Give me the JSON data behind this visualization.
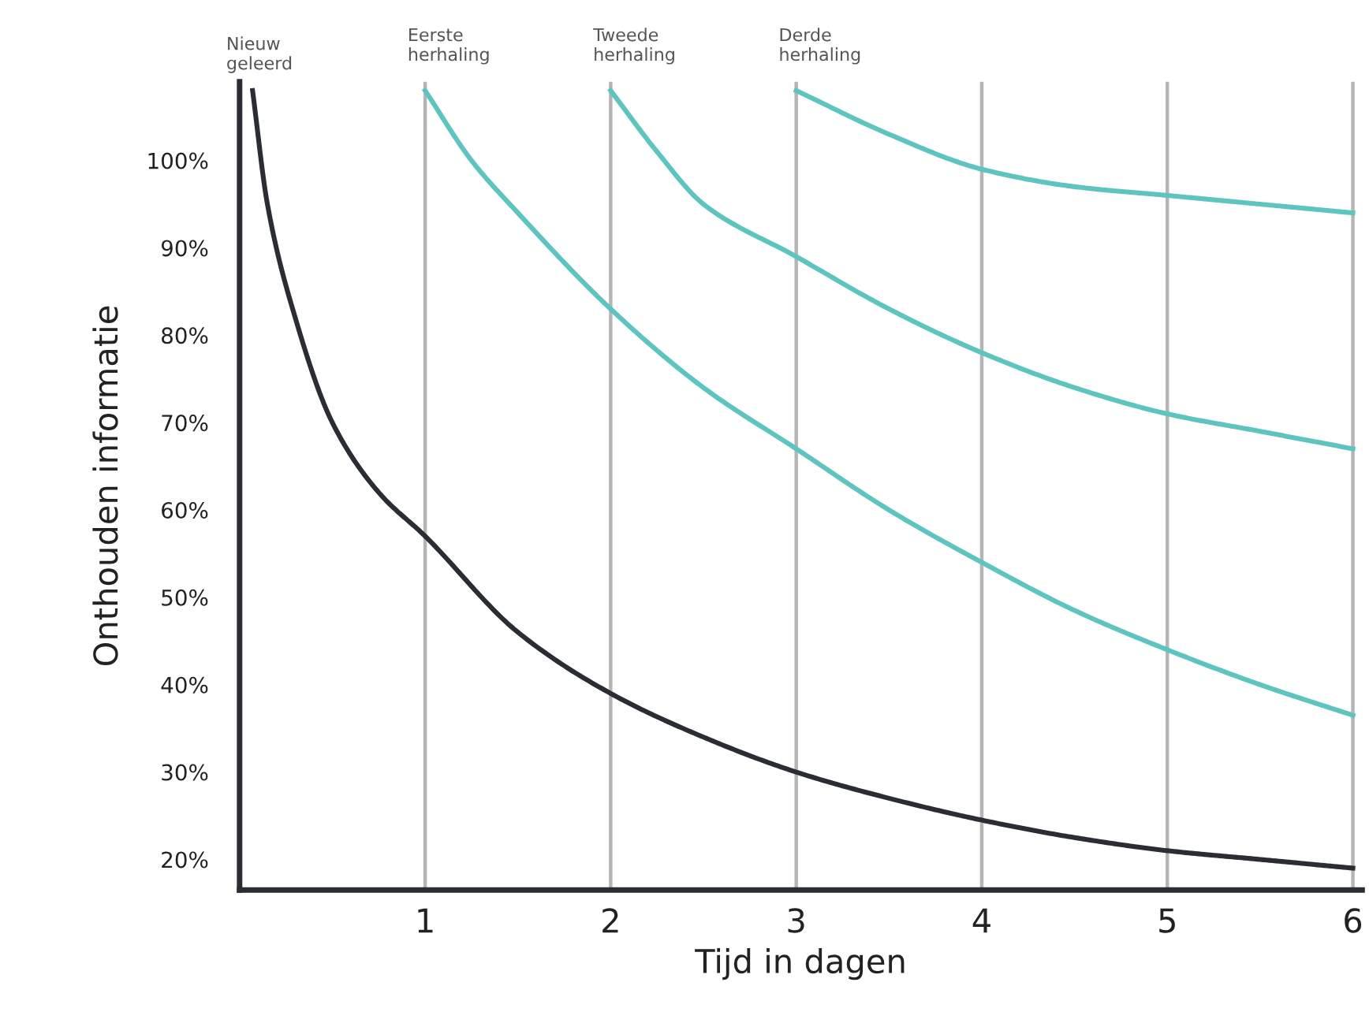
{
  "chart_data": {
    "type": "line",
    "xlabel": "Tijd in dagen",
    "ylabel": "Onthouden informatie",
    "xlim": [
      0,
      6.05
    ],
    "xticks": [
      1,
      2,
      3,
      4,
      5,
      6
    ],
    "ylim": [
      16.5,
      109
    ],
    "yticks": [
      {
        "value": 20,
        "label": "20%"
      },
      {
        "value": 30,
        "label": "30%"
      },
      {
        "value": 40,
        "label": "40%"
      },
      {
        "value": 50,
        "label": "50%"
      },
      {
        "value": 60,
        "label": "60%"
      },
      {
        "value": 70,
        "label": "70%"
      },
      {
        "value": 80,
        "label": "80%"
      },
      {
        "value": 90,
        "label": "90%"
      },
      {
        "value": 100,
        "label": "100%"
      }
    ],
    "annotations": [
      {
        "text": "Nieuw\ngeleerd",
        "x": 0.07,
        "y": 108
      }
    ],
    "grid": false,
    "legend": false,
    "marker": "none",
    "line_style": "solid",
    "series": [
      {
        "color": "#2b2d35",
        "x": [
          0.07,
          0.15,
          0.3,
          0.5,
          0.75,
          1,
          1.5,
          2,
          2.5,
          3,
          3.5,
          4,
          4.5,
          5,
          5.5,
          6
        ],
        "values": [
          108,
          95,
          82,
          70,
          62,
          57,
          46,
          39,
          34,
          30,
          27,
          24.5,
          22.5,
          21,
          20,
          19
        ]
      },
      {
        "color": "#5ec4c0",
        "x": [
          1,
          1.25,
          1.5,
          2,
          2.5,
          3,
          3.5,
          4,
          4.5,
          5,
          5.5,
          6
        ],
        "values": [
          108,
          100,
          94,
          83,
          74,
          67,
          60,
          54,
          48.5,
          44,
          40,
          36.5
        ]
      },
      {
        "color": "#5ec4c0",
        "x": [
          2,
          2.25,
          2.5,
          3,
          3.5,
          4,
          4.5,
          5,
          5.5,
          6
        ],
        "values": [
          108,
          101,
          95,
          89,
          83,
          78,
          74,
          71,
          69,
          67
        ]
      },
      {
        "color": "#5ec4c0",
        "x": [
          3,
          3.5,
          4,
          4.5,
          5,
          5.5,
          6
        ],
        "values": [
          108,
          103,
          99,
          97,
          96,
          95,
          94
        ]
      }
    ],
    "ref_lines": [
      {
        "axis": "x",
        "value": 1,
        "label": "Eerste\nherhaling",
        "color": "#b5b5b5"
      },
      {
        "axis": "x",
        "value": 2,
        "label": "Tweede\nherhaling",
        "color": "#b5b5b5"
      },
      {
        "axis": "x",
        "value": 3,
        "label": "Derde\nherhaling",
        "color": "#b5b5b5"
      },
      {
        "axis": "x",
        "value": 4,
        "color": "#b5b5b5"
      },
      {
        "axis": "x",
        "value": 5,
        "color": "#b5b5b5"
      },
      {
        "axis": "x",
        "value": 6,
        "color": "#b5b5b5"
      }
    ]
  }
}
